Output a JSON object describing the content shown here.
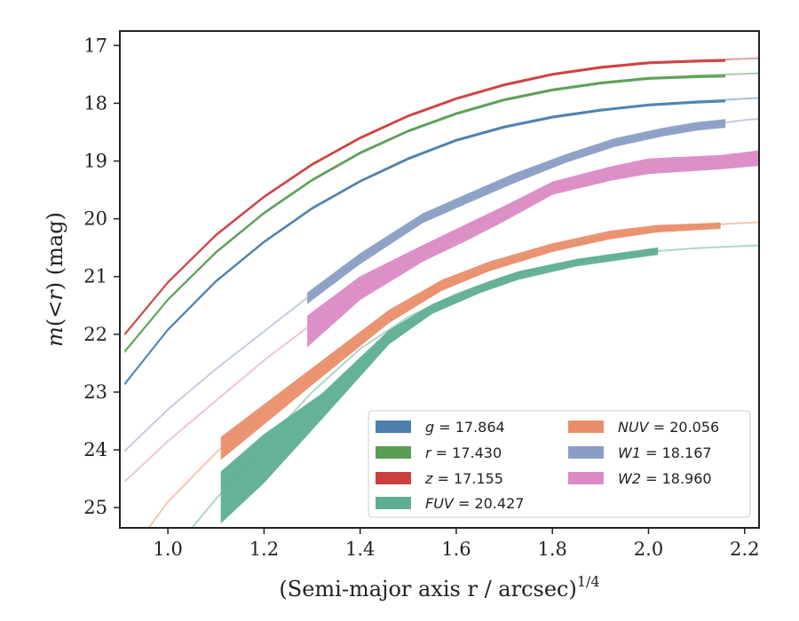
{
  "chart_data": {
    "type": "line",
    "xlabel": "(Semi-major axis r / arcsec)",
    "xlabel_exponent": "1/4",
    "ylabel_parts": [
      "m",
      "(<",
      "r",
      ") (mag)"
    ],
    "xlim": [
      0.9,
      2.23
    ],
    "ylim": [
      25.35,
      16.75
    ],
    "y_inverted": true,
    "grid": false,
    "legend_position": "lower-right",
    "xticks": [
      1.0,
      1.2,
      1.4,
      1.6,
      1.8,
      2.0,
      2.2
    ],
    "xtick_labels": [
      "1.0",
      "1.2",
      "1.4",
      "1.6",
      "1.8",
      "2.0",
      "2.2"
    ],
    "yticks": [
      17,
      18,
      19,
      20,
      21,
      22,
      23,
      24,
      25
    ],
    "ytick_labels": [
      "17",
      "18",
      "19",
      "20",
      "21",
      "22",
      "23",
      "24",
      "25"
    ],
    "series": [
      {
        "name": "g",
        "legend_text": "g = 17.864",
        "color": "#4c7fab",
        "model": [
          [
            0.91,
            22.86
          ],
          [
            1.0,
            21.92
          ],
          [
            1.1,
            21.08
          ],
          [
            1.2,
            20.4
          ],
          [
            1.3,
            19.82
          ],
          [
            1.4,
            19.35
          ],
          [
            1.5,
            18.96
          ],
          [
            1.6,
            18.64
          ],
          [
            1.7,
            18.41
          ],
          [
            1.8,
            18.24
          ],
          [
            1.9,
            18.12
          ],
          [
            2.0,
            18.03
          ],
          [
            2.1,
            17.97
          ],
          [
            2.2,
            17.92
          ],
          [
            2.23,
            17.91
          ]
        ],
        "measured": [
          [
            0.91,
            22.86,
            22.86
          ],
          [
            1.0,
            21.92,
            21.92
          ],
          [
            1.1,
            21.08,
            21.08
          ],
          [
            1.2,
            20.4,
            20.4
          ],
          [
            1.3,
            19.82,
            19.82
          ],
          [
            1.4,
            19.35,
            19.35
          ],
          [
            1.5,
            18.96,
            18.96
          ],
          [
            1.6,
            18.64,
            18.64
          ],
          [
            1.7,
            18.41,
            18.41
          ],
          [
            1.8,
            18.24,
            18.24
          ],
          [
            1.9,
            18.12,
            18.12
          ],
          [
            2.0,
            18.03,
            18.03
          ],
          [
            2.1,
            17.98,
            17.98
          ],
          [
            2.16,
            17.96,
            17.96
          ]
        ]
      },
      {
        "name": "r",
        "legend_text": "r = 17.430",
        "color": "#5a9e55",
        "model": [
          [
            0.91,
            22.3
          ],
          [
            1.0,
            21.4
          ],
          [
            1.1,
            20.58
          ],
          [
            1.2,
            19.9
          ],
          [
            1.3,
            19.33
          ],
          [
            1.4,
            18.86
          ],
          [
            1.5,
            18.48
          ],
          [
            1.6,
            18.18
          ],
          [
            1.7,
            17.94
          ],
          [
            1.8,
            17.77
          ],
          [
            1.9,
            17.65
          ],
          [
            2.0,
            17.57
          ],
          [
            2.1,
            17.52
          ],
          [
            2.2,
            17.49
          ],
          [
            2.23,
            17.48
          ]
        ],
        "measured": [
          [
            0.91,
            22.3,
            22.3
          ],
          [
            1.0,
            21.4,
            21.4
          ],
          [
            1.1,
            20.58,
            20.58
          ],
          [
            1.2,
            19.9,
            19.9
          ],
          [
            1.3,
            19.33,
            19.33
          ],
          [
            1.4,
            18.86,
            18.86
          ],
          [
            1.5,
            18.48,
            18.48
          ],
          [
            1.6,
            18.18,
            18.18
          ],
          [
            1.7,
            17.94,
            17.94
          ],
          [
            1.8,
            17.77,
            17.77
          ],
          [
            1.9,
            17.65,
            17.65
          ],
          [
            2.0,
            17.57,
            17.57
          ],
          [
            2.1,
            17.54,
            17.54
          ],
          [
            2.16,
            17.53,
            17.53
          ]
        ]
      },
      {
        "name": "z",
        "legend_text": "z = 17.155",
        "color": "#cc3f3f",
        "model": [
          [
            0.91,
            22.0
          ],
          [
            1.0,
            21.1
          ],
          [
            1.1,
            20.28
          ],
          [
            1.2,
            19.62
          ],
          [
            1.3,
            19.06
          ],
          [
            1.4,
            18.6
          ],
          [
            1.5,
            18.22
          ],
          [
            1.6,
            17.92
          ],
          [
            1.7,
            17.68
          ],
          [
            1.8,
            17.5
          ],
          [
            1.9,
            17.38
          ],
          [
            2.0,
            17.3
          ],
          [
            2.1,
            17.26
          ],
          [
            2.2,
            17.23
          ],
          [
            2.23,
            17.22
          ]
        ],
        "measured": [
          [
            0.91,
            22.0,
            22.0
          ],
          [
            1.0,
            21.1,
            21.1
          ],
          [
            1.1,
            20.28,
            20.28
          ],
          [
            1.2,
            19.62,
            19.62
          ],
          [
            1.3,
            19.06,
            19.06
          ],
          [
            1.4,
            18.6,
            18.6
          ],
          [
            1.5,
            18.22,
            18.22
          ],
          [
            1.6,
            17.92,
            17.92
          ],
          [
            1.7,
            17.68,
            17.68
          ],
          [
            1.8,
            17.5,
            17.5
          ],
          [
            1.9,
            17.38,
            17.38
          ],
          [
            2.0,
            17.3,
            17.3
          ],
          [
            2.1,
            17.27,
            17.27
          ],
          [
            2.16,
            17.26,
            17.26
          ]
        ]
      },
      {
        "name": "FUV",
        "legend_text": "FUV = 20.427",
        "color": "#5eae94",
        "model": [
          [
            1.05,
            25.35
          ],
          [
            1.1,
            24.85
          ],
          [
            1.2,
            23.9
          ],
          [
            1.3,
            23.0
          ],
          [
            1.4,
            22.25
          ],
          [
            1.5,
            21.7
          ],
          [
            1.6,
            21.3
          ],
          [
            1.7,
            21.0
          ],
          [
            1.8,
            20.8
          ],
          [
            1.9,
            20.66
          ],
          [
            2.0,
            20.57
          ],
          [
            2.1,
            20.51
          ],
          [
            2.2,
            20.47
          ],
          [
            2.23,
            20.46
          ]
        ],
        "measured": [
          [
            1.11,
            24.4,
            25.25
          ],
          [
            1.2,
            23.75,
            24.55
          ],
          [
            1.32,
            23.05,
            23.45
          ],
          [
            1.46,
            21.95,
            22.15
          ],
          [
            1.55,
            21.5,
            21.62
          ],
          [
            1.65,
            21.16,
            21.26
          ],
          [
            1.73,
            20.93,
            21.03
          ],
          [
            1.85,
            20.72,
            20.8
          ],
          [
            1.95,
            20.6,
            20.68
          ],
          [
            2.02,
            20.52,
            20.6
          ]
        ]
      },
      {
        "name": "NUV",
        "legend_text": "NUV = 20.056",
        "color": "#e98e6a",
        "model": [
          [
            0.96,
            25.35
          ],
          [
            1.0,
            24.9
          ],
          [
            1.1,
            24.05
          ],
          [
            1.2,
            23.3
          ],
          [
            1.3,
            22.7
          ],
          [
            1.4,
            22.05
          ],
          [
            1.5,
            21.5
          ],
          [
            1.6,
            21.1
          ],
          [
            1.7,
            20.78
          ],
          [
            1.8,
            20.53
          ],
          [
            1.9,
            20.33
          ],
          [
            2.0,
            20.2
          ],
          [
            2.1,
            20.12
          ],
          [
            2.2,
            20.07
          ],
          [
            2.23,
            20.06
          ]
        ],
        "measured": [
          [
            1.11,
            23.8,
            24.15
          ],
          [
            1.32,
            22.48,
            22.72
          ],
          [
            1.46,
            21.6,
            21.78
          ],
          [
            1.57,
            21.08,
            21.22
          ],
          [
            1.67,
            20.76,
            20.88
          ],
          [
            1.8,
            20.45,
            20.55
          ],
          [
            1.92,
            20.23,
            20.33
          ],
          [
            2.02,
            20.13,
            20.21
          ],
          [
            2.15,
            20.09,
            20.15
          ]
        ]
      },
      {
        "name": "W1",
        "legend_text": "W1 = 18.167",
        "color": "#8a9dc4",
        "model": [
          [
            0.91,
            24.02
          ],
          [
            1.0,
            23.3
          ],
          [
            1.1,
            22.6
          ],
          [
            1.2,
            21.95
          ],
          [
            1.3,
            21.3
          ],
          [
            1.4,
            20.68
          ],
          [
            1.5,
            20.15
          ],
          [
            1.6,
            19.72
          ],
          [
            1.7,
            19.35
          ],
          [
            1.8,
            19.05
          ],
          [
            1.9,
            18.78
          ],
          [
            2.0,
            18.55
          ],
          [
            2.1,
            18.4
          ],
          [
            2.2,
            18.29
          ],
          [
            2.23,
            18.27
          ]
        ],
        "measured": [
          [
            1.29,
            21.3,
            21.45
          ],
          [
            1.4,
            20.62,
            20.76
          ],
          [
            1.53,
            19.93,
            20.05
          ],
          [
            1.62,
            19.6,
            19.72
          ],
          [
            1.72,
            19.24,
            19.36
          ],
          [
            1.83,
            18.9,
            19.0
          ],
          [
            1.93,
            18.63,
            18.73
          ],
          [
            2.03,
            18.45,
            18.55
          ],
          [
            2.1,
            18.35,
            18.45
          ],
          [
            2.16,
            18.3,
            18.4
          ]
        ]
      },
      {
        "name": "W2",
        "legend_text": "W2 = 18.960",
        "color": "#db8ac4",
        "model": [
          [
            0.91,
            24.55
          ],
          [
            1.0,
            23.85
          ],
          [
            1.1,
            23.15
          ],
          [
            1.2,
            22.45
          ],
          [
            1.3,
            21.82
          ],
          [
            1.4,
            21.2
          ],
          [
            1.5,
            20.68
          ],
          [
            1.6,
            20.22
          ],
          [
            1.7,
            19.85
          ],
          [
            1.8,
            19.53
          ],
          [
            1.9,
            19.28
          ],
          [
            2.0,
            19.1
          ],
          [
            2.1,
            18.99
          ],
          [
            2.2,
            18.92
          ],
          [
            2.23,
            18.9
          ]
        ],
        "measured": [
          [
            1.29,
            21.7,
            22.2
          ],
          [
            1.4,
            21.02,
            21.38
          ],
          [
            1.53,
            20.48,
            20.72
          ],
          [
            1.62,
            20.12,
            20.36
          ],
          [
            1.7,
            19.8,
            20.02
          ],
          [
            1.8,
            19.38,
            19.56
          ],
          [
            1.92,
            19.12,
            19.32
          ],
          [
            2.0,
            18.98,
            19.2
          ],
          [
            2.15,
            18.92,
            19.12
          ],
          [
            2.23,
            18.84,
            19.06
          ]
        ]
      }
    ],
    "legend": {
      "columns": [
        [
          "g",
          "r",
          "z",
          "FUV"
        ],
        [
          "NUV",
          "W1",
          "W2"
        ]
      ]
    }
  }
}
